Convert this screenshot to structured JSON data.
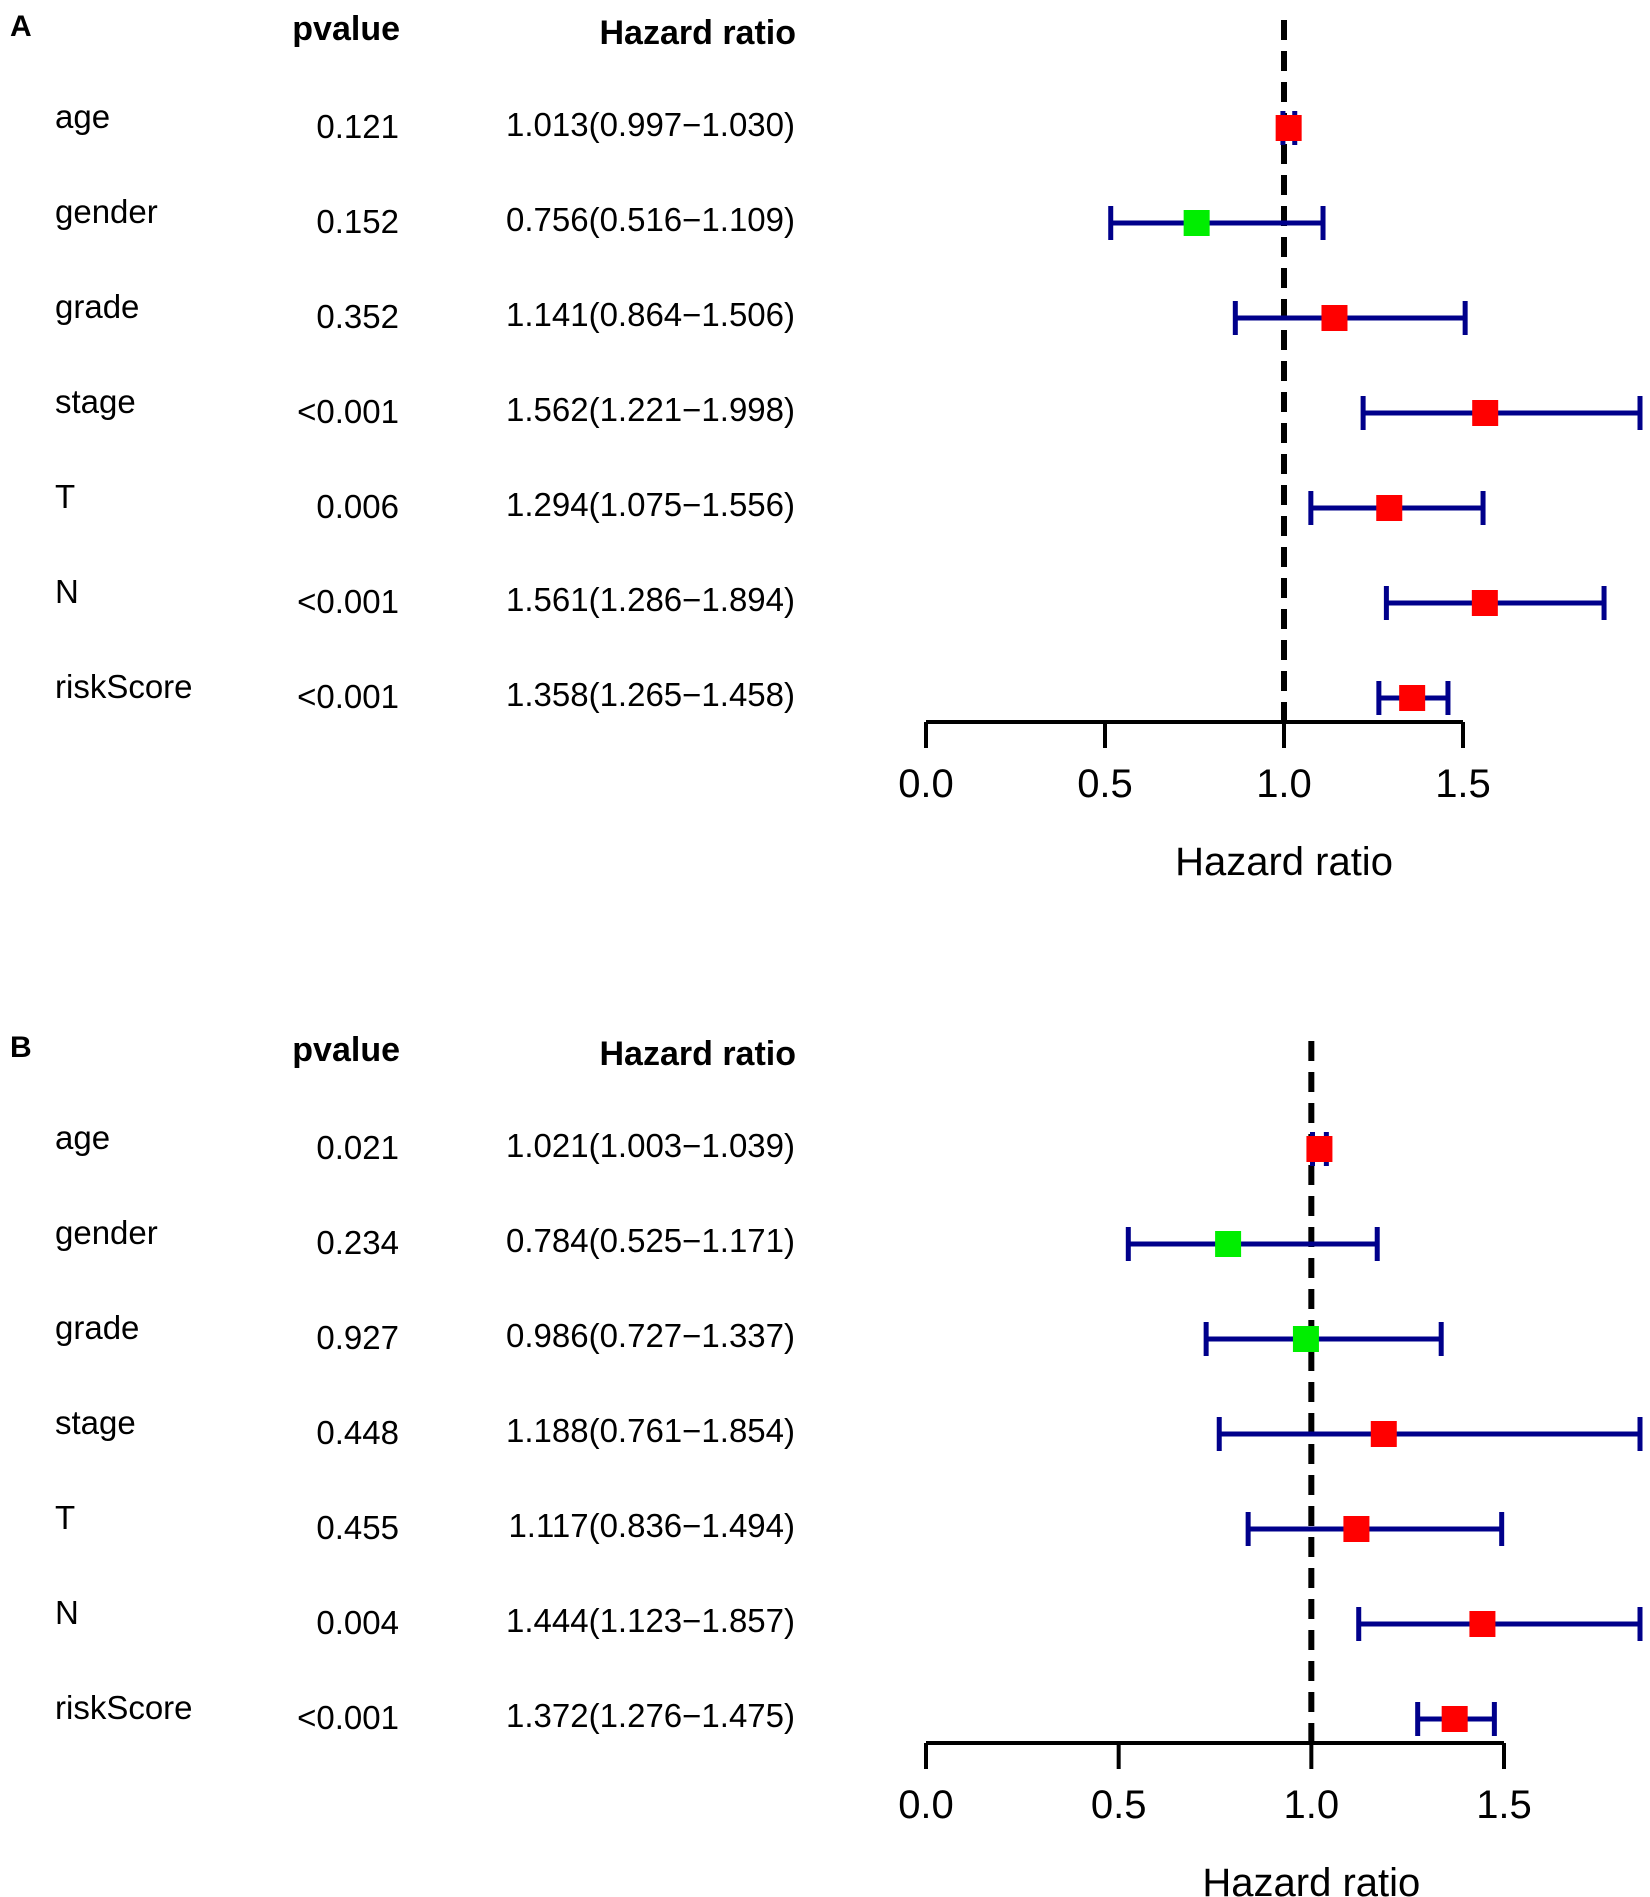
{
  "chart_data": [
    {
      "type": "forest",
      "panel": "A",
      "col_headers": {
        "pvalue": "pvalue",
        "hazard": "Hazard ratio"
      },
      "xlabel": "Hazard ratio",
      "ticks": [
        "0.0",
        "0.5",
        "1.0",
        "1.5"
      ],
      "reference_line": 1.0,
      "colors": {
        "risk": "#ff0000",
        "protective": "#00ee00",
        "ci": "#00008b",
        "axis": "#000000"
      },
      "rows": [
        {
          "name": "age",
          "pvalue": "0.121",
          "hr_text": "1.013(0.997−1.030)",
          "hr": 1.013,
          "low": 0.997,
          "high": 1.03
        },
        {
          "name": "gender",
          "pvalue": "0.152",
          "hr_text": "0.756(0.516−1.109)",
          "hr": 0.756,
          "low": 0.516,
          "high": 1.109
        },
        {
          "name": "grade",
          "pvalue": "0.352",
          "hr_text": "1.141(0.864−1.506)",
          "hr": 1.141,
          "low": 0.864,
          "high": 1.506
        },
        {
          "name": "stage",
          "pvalue": "<0.001",
          "hr_text": "1.562(1.221−1.998)",
          "hr": 1.562,
          "low": 1.221,
          "high": 1.998
        },
        {
          "name": "T",
          "pvalue": "0.006",
          "hr_text": "1.294(1.075−1.556)",
          "hr": 1.294,
          "low": 1.075,
          "high": 1.556
        },
        {
          "name": "N",
          "pvalue": "<0.001",
          "hr_text": "1.561(1.286−1.894)",
          "hr": 1.561,
          "low": 1.286,
          "high": 1.894
        },
        {
          "name": "riskScore",
          "pvalue": "<0.001",
          "hr_text": "1.358(1.265−1.458)",
          "hr": 1.358,
          "low": 1.265,
          "high": 1.458
        }
      ]
    },
    {
      "type": "forest",
      "panel": "B",
      "col_headers": {
        "pvalue": "pvalue",
        "hazard": "Hazard ratio"
      },
      "xlabel": "Hazard ratio",
      "ticks": [
        "0.0",
        "0.5",
        "1.0",
        "1.5"
      ],
      "reference_line": 1.0,
      "colors": {
        "risk": "#ff0000",
        "protective": "#00ee00",
        "ci": "#00008b",
        "axis": "#000000"
      },
      "rows": [
        {
          "name": "age",
          "pvalue": "0.021",
          "hr_text": "1.021(1.003−1.039)",
          "hr": 1.021,
          "low": 1.003,
          "high": 1.039
        },
        {
          "name": "gender",
          "pvalue": "0.234",
          "hr_text": "0.784(0.525−1.171)",
          "hr": 0.784,
          "low": 0.525,
          "high": 1.171
        },
        {
          "name": "grade",
          "pvalue": "0.927",
          "hr_text": "0.986(0.727−1.337)",
          "hr": 0.986,
          "low": 0.727,
          "high": 1.337
        },
        {
          "name": "stage",
          "pvalue": "0.448",
          "hr_text": "1.188(0.761−1.854)",
          "hr": 1.188,
          "low": 0.761,
          "high": 1.854
        },
        {
          "name": "T",
          "pvalue": "0.455",
          "hr_text": "1.117(0.836−1.494)",
          "hr": 1.117,
          "low": 0.836,
          "high": 1.494
        },
        {
          "name": "N",
          "pvalue": "0.004",
          "hr_text": "1.444(1.123−1.857)",
          "hr": 1.444,
          "low": 1.123,
          "high": 1.857
        },
        {
          "name": "riskScore",
          "pvalue": "<0.001",
          "hr_text": "1.372(1.276−1.475)",
          "hr": 1.372,
          "low": 1.276,
          "high": 1.475
        }
      ]
    }
  ]
}
